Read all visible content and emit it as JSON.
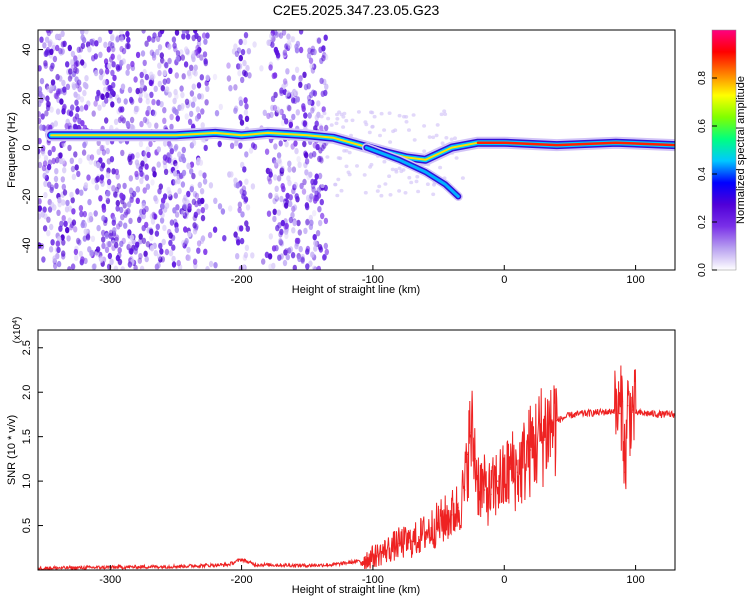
{
  "figure_title": "C2E5.2025.347.23.05.G23",
  "chart_data": [
    {
      "type": "heatmap",
      "title": "C2E5.2025.347.23.05.G23",
      "xlabel": "Height of straight line (km)",
      "ylabel": "Frequency (Hz)",
      "xlim": [
        -355,
        130
      ],
      "ylim": [
        -50,
        48
      ],
      "xticks": [
        -300,
        -200,
        -100,
        0,
        100
      ],
      "yticks": [
        -40,
        -20,
        0,
        20,
        40
      ],
      "colorbar": {
        "label": "Normalized spectral amplitude",
        "range": [
          0.0,
          1.0
        ],
        "ticks": [
          0.0,
          0.2,
          0.4,
          0.6,
          0.8
        ],
        "tick_labels": [
          "0.0",
          "0.2",
          "0.4",
          "0.6",
          "0.8"
        ],
        "colormap": [
          "#ffffff",
          "#b8a0f0",
          "#7a30e8",
          "#5000d8",
          "#0000ff",
          "#00c8ff",
          "#00ff80",
          "#80ff00",
          "#ffff00",
          "#ff8000",
          "#ff0000",
          "#ff0080"
        ]
      },
      "ridge": [
        {
          "x": -345,
          "y": 5
        },
        {
          "x": -300,
          "y": 5
        },
        {
          "x": -250,
          "y": 5
        },
        {
          "x": -220,
          "y": 6
        },
        {
          "x": -200,
          "y": 5
        },
        {
          "x": -180,
          "y": 6
        },
        {
          "x": -150,
          "y": 5
        },
        {
          "x": -130,
          "y": 4
        },
        {
          "x": -110,
          "y": 1
        },
        {
          "x": -90,
          "y": -2
        },
        {
          "x": -75,
          "y": -4
        },
        {
          "x": -60,
          "y": -5
        },
        {
          "x": -40,
          "y": 0
        },
        {
          "x": -20,
          "y": 2
        },
        {
          "x": 0,
          "y": 2
        },
        {
          "x": 40,
          "y": 1
        },
        {
          "x": 85,
          "y": 2
        },
        {
          "x": 130,
          "y": 1
        }
      ],
      "branch": [
        {
          "x": -105,
          "y": 0
        },
        {
          "x": -80,
          "y": -5
        },
        {
          "x": -60,
          "y": -10
        },
        {
          "x": -45,
          "y": -15
        },
        {
          "x": -35,
          "y": -20
        }
      ]
    },
    {
      "type": "line",
      "xlabel": "Height of straight line (km)",
      "ylabel": "SNR (10 * v/v)",
      "y_scale_label": "(x10",
      "y_scale_exp": "4",
      "xlim": [
        -355,
        130
      ],
      "ylim": [
        0.0,
        2.7
      ],
      "xticks": [
        -300,
        -200,
        -100,
        0,
        100
      ],
      "yticks": [
        0.5,
        1.0,
        1.5,
        2.0,
        2.5
      ],
      "ytick_labels": [
        "0.5",
        "1.0",
        "1.5",
        "2.0",
        "2.5"
      ],
      "color": "#ee2222",
      "series": [
        {
          "x": [
            -355,
            -300,
            -250,
            -210,
            -200,
            -190,
            -150,
            -130,
            -110,
            -100,
            -90,
            -80,
            -70,
            -60,
            -50,
            -40,
            -35,
            -30,
            -28,
            -25,
            -22,
            -20,
            -15,
            -10,
            -5,
            0,
            5,
            10,
            20,
            30,
            40,
            50,
            60,
            70,
            80,
            85,
            88,
            90,
            92,
            94,
            96,
            98,
            100,
            110,
            120,
            130
          ],
          "y": [
            0.02,
            0.03,
            0.04,
            0.06,
            0.12,
            0.06,
            0.05,
            0.06,
            0.1,
            0.15,
            0.22,
            0.3,
            0.32,
            0.42,
            0.52,
            0.62,
            0.7,
            0.9,
            1.3,
            1.55,
            1.25,
            1.0,
            0.9,
            0.85,
            1.0,
            1.0,
            1.15,
            1.1,
            1.35,
            1.55,
            1.68,
            1.74,
            1.76,
            1.77,
            1.78,
            1.8,
            1.76,
            1.9,
            1.1,
            1.85,
            1.75,
            1.8,
            1.77,
            1.76,
            1.75,
            1.75
          ]
        }
      ]
    }
  ]
}
